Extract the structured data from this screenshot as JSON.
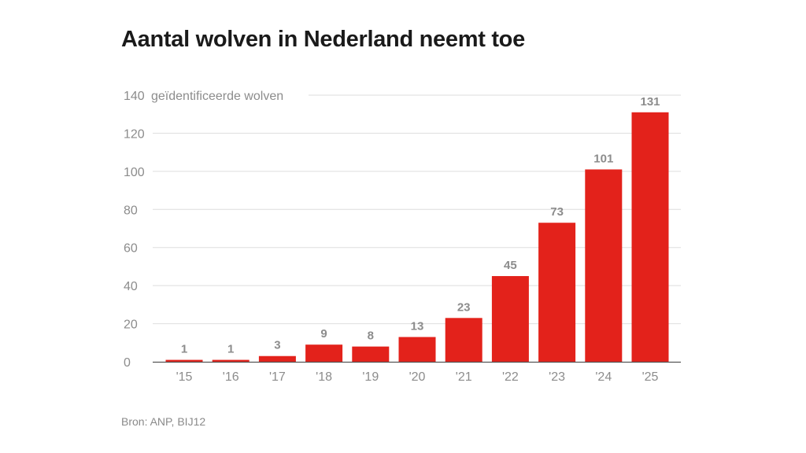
{
  "title": "Aantal wolven in Nederland neemt toe",
  "source": "Bron: ANP, BIJ12",
  "colors": {
    "bar": "#e3221b",
    "grid": "#dedede",
    "axis": "#555555",
    "text": "#8c8c8c"
  },
  "chart_data": {
    "type": "bar",
    "title": "Aantal wolven in Nederland neemt toe",
    "ylabel": "geïdentificeerde wolven",
    "categories": [
      "'15",
      "'16",
      "'17",
      "'18",
      "'19",
      "'20",
      "'21",
      "'22",
      "'23",
      "'24",
      "'25"
    ],
    "values": [
      1,
      1,
      3,
      9,
      8,
      13,
      23,
      45,
      73,
      101,
      131
    ],
    "data_labels": [
      "1",
      "1",
      "3",
      "9",
      "8",
      "13",
      "23",
      "45",
      "73",
      "101",
      "131"
    ],
    "yticks": [
      0,
      20,
      40,
      60,
      80,
      100,
      120,
      140
    ],
    "ylim": [
      0,
      140
    ],
    "grid": true,
    "legend": "none"
  }
}
